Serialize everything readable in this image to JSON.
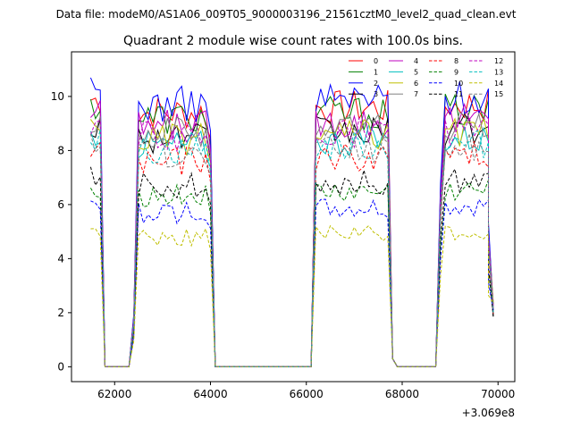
{
  "header": {
    "data_file": "Data file: modeM0/AS1A06_009T05_9000003196_21561cztM0_level2_quad_clean.evt"
  },
  "chart_data": {
    "type": "line",
    "title": "Quadrant 2 module wise count rates with 100.0s bins.",
    "xlabel": "",
    "ylabel": "",
    "x_offset_label": "+3.069e8",
    "xlim": [
      61100,
      70350
    ],
    "ylim": [
      -0.55,
      11.65
    ],
    "xticks": [
      62000,
      64000,
      66000,
      68000,
      70000
    ],
    "xtick_labels": [
      "62000",
      "64000",
      "66000",
      "68000",
      "70000"
    ],
    "yticks": [
      0,
      2,
      4,
      6,
      8,
      10
    ],
    "ytick_labels": [
      "0",
      "2",
      "4",
      "6",
      "8",
      "10"
    ],
    "legend_position": "top-right",
    "active_segments": [
      [
        61500,
        61700
      ],
      [
        62500,
        63900
      ],
      [
        66200,
        67700
      ],
      [
        68900,
        69800
      ]
    ],
    "series": [
      {
        "name": "0",
        "color": "#ff0000",
        "style": "solid",
        "level": 9.4
      },
      {
        "name": "1",
        "color": "#008000",
        "style": "solid",
        "level": 9.2
      },
      {
        "name": "2",
        "color": "#0000ff",
        "style": "solid",
        "level": 9.7
      },
      {
        "name": "3",
        "color": "#000000",
        "style": "solid",
        "level": 8.5
      },
      {
        "name": "4",
        "color": "#bf00bf",
        "style": "solid",
        "level": 8.9
      },
      {
        "name": "5",
        "color": "#00bfbf",
        "style": "solid",
        "level": 8.2
      },
      {
        "name": "6",
        "color": "#bfbf00",
        "style": "solid",
        "level": 8.4
      },
      {
        "name": "7",
        "color": "#808080",
        "style": "solid",
        "level": 8.7
      },
      {
        "name": "8",
        "color": "#ff0000",
        "style": "dashed",
        "level": 7.6
      },
      {
        "name": "9",
        "color": "#008000",
        "style": "dashed",
        "level": 6.3
      },
      {
        "name": "10",
        "color": "#0000ff",
        "style": "dashed",
        "level": 5.7
      },
      {
        "name": "11",
        "color": "#000000",
        "style": "dashed",
        "level": 6.7
      },
      {
        "name": "12",
        "color": "#bf00bf",
        "style": "dashed",
        "level": 8.5
      },
      {
        "name": "13",
        "color": "#00bfbf",
        "style": "dashed",
        "level": 8.0
      },
      {
        "name": "14",
        "color": "#bfbf00",
        "style": "dashed",
        "level": 4.8
      },
      {
        "name": "15",
        "color": "#808080",
        "style": "dashed",
        "level": 7.9
      }
    ]
  }
}
